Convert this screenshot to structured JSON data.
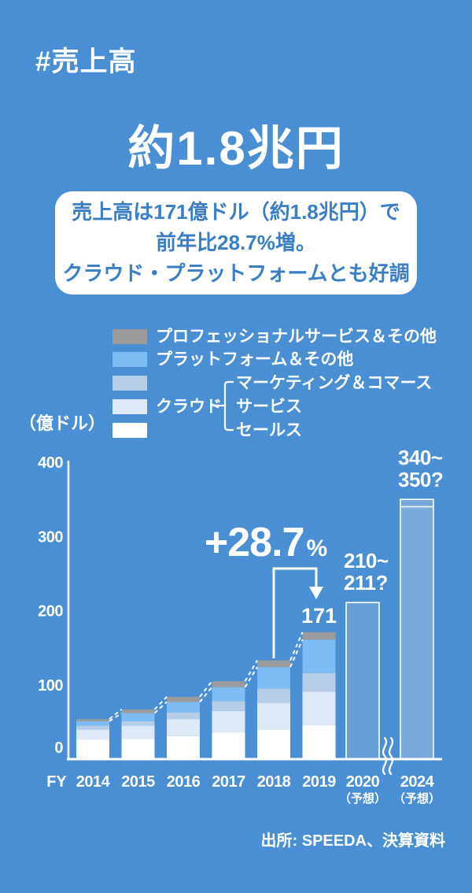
{
  "page": {
    "hashtag": "#売上高",
    "headline": "約1.8兆円",
    "summary_lines": [
      "売上高は171億ドル（約1.8兆円）で",
      "前年比28.7%増。",
      "クラウド・プラットフォームとも好調"
    ],
    "source": "出所: SPEEDA、決算資料"
  },
  "colors": {
    "background": "#4a8fd3",
    "summary_text": "#3a7ec6",
    "professional": "#9b9b9b",
    "platform": "#7dbcf4",
    "marketing": "#b6cde8",
    "service": "#dde9f6",
    "sales": "#ffffff",
    "forecast_2020": "#66a0d6",
    "forecast_2024": "#77a9dc",
    "axis": "#ffffff"
  },
  "legend": {
    "items": [
      {
        "label": "プロフェッショナルサービス＆その他",
        "color_key": "professional"
      },
      {
        "label": "プラットフォーム＆その他",
        "color_key": "platform"
      },
      {
        "label": "マーケティング＆コマース",
        "color_key": "marketing"
      },
      {
        "label": "サービス",
        "color_key": "service"
      },
      {
        "label": "セールス",
        "color_key": "sales"
      }
    ],
    "cloud_group_label": "クラウド"
  },
  "chart_data": {
    "type": "bar",
    "stacked": true,
    "unit_label": "（億ドル）",
    "x_prefix": "FY",
    "ylim": [
      0,
      400
    ],
    "y_ticks": [
      400,
      300,
      200,
      100,
      0
    ],
    "series_bottom_to_top": [
      "セールス",
      "サービス",
      "マーケティング＆コマース",
      "プラットフォーム＆その他",
      "プロフェッショナルサービス＆その他"
    ],
    "bars": [
      {
        "year": "2014",
        "segments": [
          26,
          14,
          5,
          6,
          3
        ],
        "total": 54
      },
      {
        "year": "2015",
        "segments": [
          27,
          18,
          6,
          11,
          5
        ],
        "total": 67
      },
      {
        "year": "2016",
        "segments": [
          31,
          23,
          9,
          14,
          7
        ],
        "total": 84
      },
      {
        "year": "2017",
        "segments": [
          36,
          29,
          13,
          19,
          8
        ],
        "total": 105
      },
      {
        "year": "2018",
        "segments": [
          40,
          36,
          19,
          29,
          9
        ],
        "total": 133
      },
      {
        "year": "2019",
        "segments": [
          46,
          45,
          25,
          45,
          10
        ],
        "total": 171,
        "label": "171"
      },
      {
        "year": "2020",
        "forecast": true,
        "top": 211,
        "label_lines": [
          "210~",
          "211?"
        ],
        "note": "（予想）",
        "color_key": "forecast_2020"
      },
      {
        "year": "2024",
        "forecast": true,
        "top": 350,
        "line_at": 340,
        "label_lines": [
          "340~",
          "350?"
        ],
        "note": "（予想）",
        "color_key": "forecast_2024"
      }
    ],
    "annotations": {
      "growth_big": "+28.7",
      "growth_small": "%",
      "growth_from_year": "2018",
      "growth_to_year": "2019",
      "bar_2019_value_label": "171"
    },
    "axis_break_between": [
      "2020",
      "2024"
    ]
  }
}
